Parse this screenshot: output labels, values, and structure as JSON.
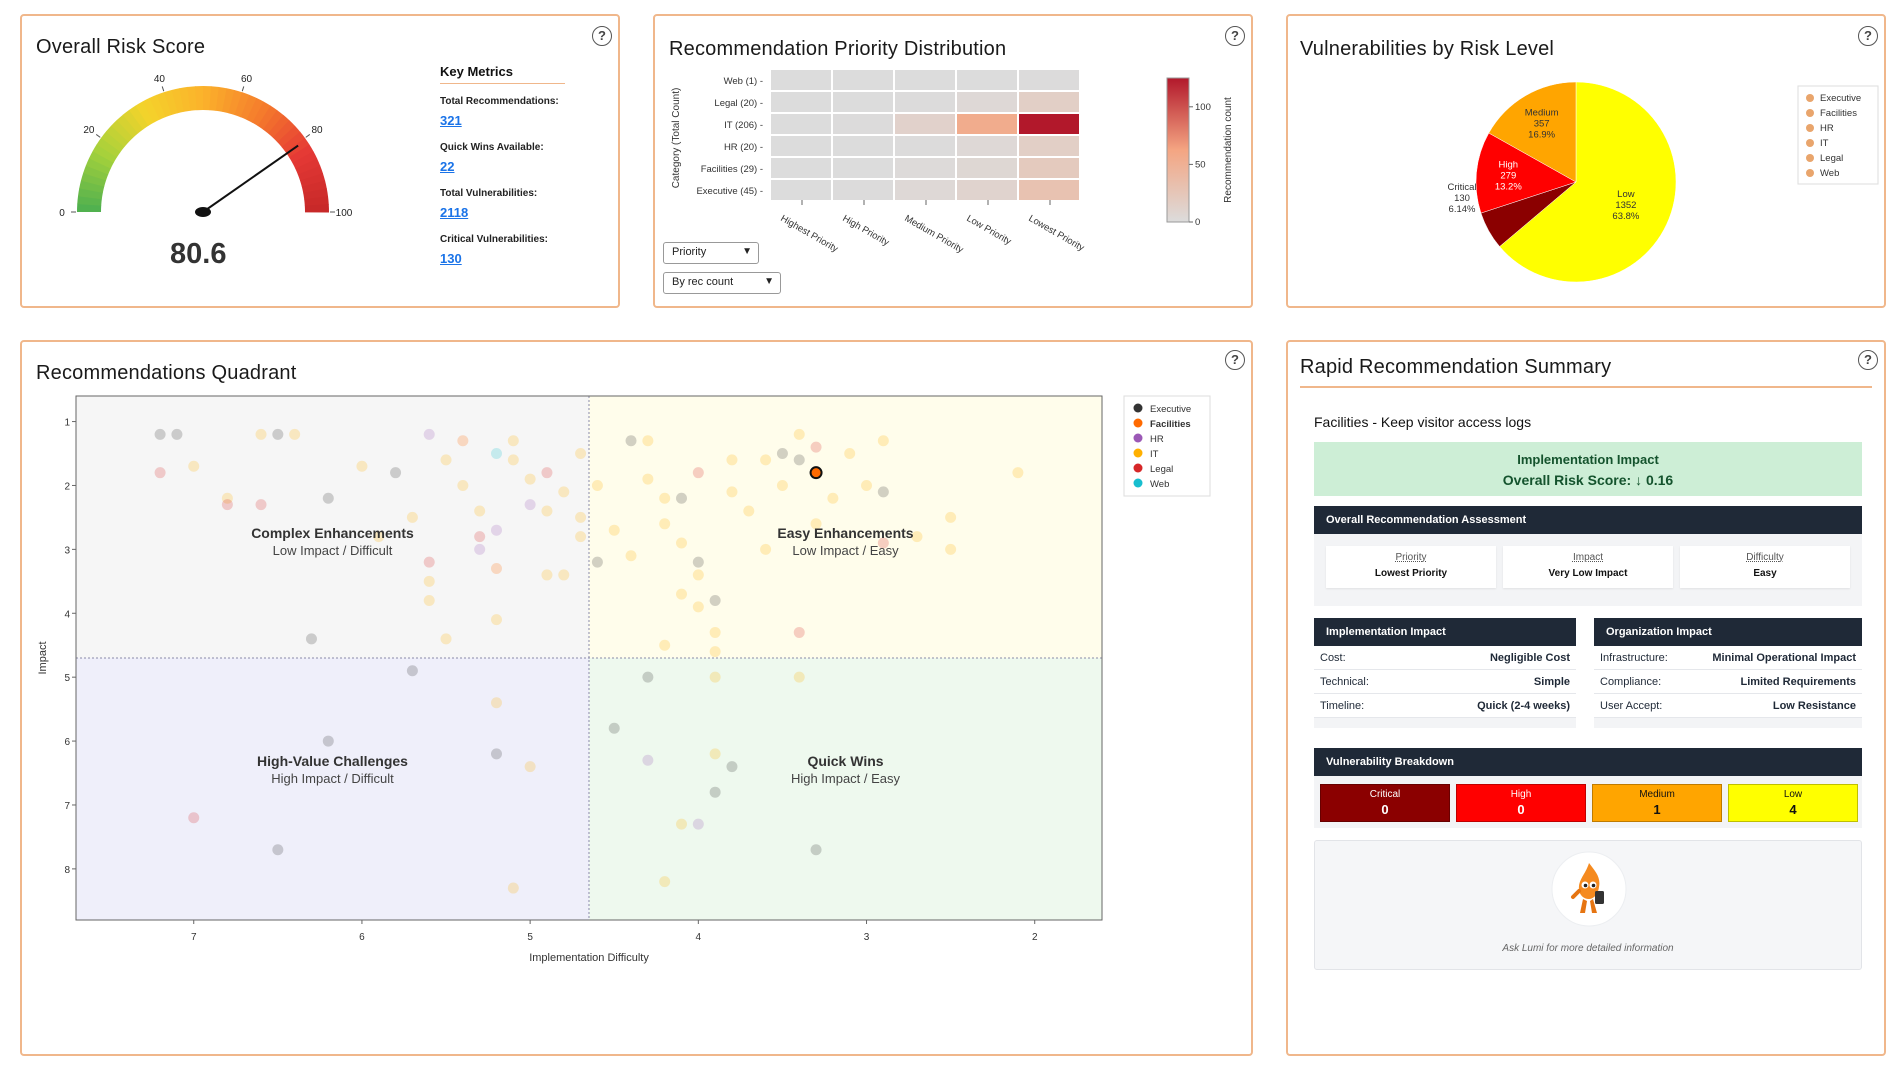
{
  "gauge": {
    "title": "Overall Risk Score",
    "score": "80.6",
    "value": 80.6,
    "ticks": [
      "0",
      "20",
      "40",
      "60",
      "80",
      "100"
    ]
  },
  "key_metrics": {
    "title": "Key Metrics",
    "items": [
      {
        "label": "Total Recommendations:",
        "value": "321"
      },
      {
        "label": "Quick Wins Available:",
        "value": "22"
      },
      {
        "label": "Total Vulnerabilities:",
        "value": "2118"
      },
      {
        "label": "Critical Vulnerabilities:",
        "value": "130"
      }
    ]
  },
  "help_label": "?",
  "heatmap": {
    "title": "Recommendation Priority Distribution",
    "ylabel": "Category (Total Count)",
    "colorbar_label": "Recommendation count",
    "colorbar_ticks": [
      "100",
      "50",
      "0"
    ],
    "rows": [
      "Web (1)",
      "Legal (20)",
      "IT (206)",
      "HR (20)",
      "Facilities (29)",
      "Executive (45)"
    ],
    "cols": [
      "Highest Priority",
      "High Priority",
      "Medium Priority",
      "Low Priority",
      "Lowest Priority"
    ],
    "select_priority": "Priority",
    "select_sort": "By rec count"
  },
  "pie": {
    "title": "Vulnerabilities by Risk Level",
    "legend": [
      "Executive",
      "Facilities",
      "HR",
      "IT",
      "Legal",
      "Web"
    ],
    "legend_color": "#e9a56c",
    "slices": [
      {
        "name": "Low",
        "count": "1352",
        "pct": "63.8%",
        "value": 1352,
        "color": "#ffff00"
      },
      {
        "name": "Critical",
        "count": "130",
        "pct": "6.14%",
        "value": 130,
        "color": "#8b0000"
      },
      {
        "name": "High",
        "count": "279",
        "pct": "13.2%",
        "value": 279,
        "color": "#ff0000"
      },
      {
        "name": "Medium",
        "count": "357",
        "pct": "16.9%",
        "value": 357,
        "color": "#ffa500"
      }
    ]
  },
  "quadrant": {
    "title": "Recommendations Quadrant",
    "xlabel": "Implementation Difficulty",
    "ylabel": "Impact",
    "xticks": [
      "7",
      "6",
      "5",
      "4",
      "3",
      "2"
    ],
    "yticks": [
      "1",
      "2",
      "3",
      "4",
      "5",
      "6",
      "7",
      "8"
    ],
    "labels": {
      "complex": {
        "title": "Complex Enhancements",
        "sub": "Low Impact / Difficult"
      },
      "easy": {
        "title": "Easy Enhancements",
        "sub": "Low Impact / Easy"
      },
      "highvalue": {
        "title": "High-Value Challenges",
        "sub": "High Impact / Difficult"
      },
      "quick": {
        "title": "Quick Wins",
        "sub": "High Impact / Easy"
      }
    },
    "legend": [
      {
        "name": "Executive",
        "color": "#333333"
      },
      {
        "name": "Facilities",
        "color": "#ff6a00"
      },
      {
        "name": "HR",
        "color": "#9b59b6"
      },
      {
        "name": "IT",
        "color": "#ffb000"
      },
      {
        "name": "Legal",
        "color": "#d62728"
      },
      {
        "name": "Web",
        "color": "#17becf"
      }
    ]
  },
  "chart_data": [
    {
      "type": "heatmap",
      "title": "Recommendation Priority Distribution",
      "x": [
        "Highest Priority",
        "High Priority",
        "Medium Priority",
        "Low Priority",
        "Lowest Priority"
      ],
      "y": [
        "Web (1)",
        "Legal (20)",
        "IT (206)",
        "HR (20)",
        "Facilities (29)",
        "Executive (45)"
      ],
      "values": [
        [
          0,
          0,
          0,
          0,
          1
        ],
        [
          0,
          0,
          1,
          4,
          15
        ],
        [
          0,
          1,
          12,
          55,
          138
        ],
        [
          0,
          0,
          1,
          4,
          15
        ],
        [
          0,
          0,
          2,
          6,
          21
        ],
        [
          0,
          1,
          4,
          10,
          30
        ]
      ],
      "zlim": [
        0,
        125
      ],
      "colorbar": "Recommendation count"
    },
    {
      "type": "pie",
      "title": "Vulnerabilities by Risk Level",
      "labels": [
        "Low",
        "Critical",
        "High",
        "Medium"
      ],
      "values": [
        1352,
        130,
        279,
        357
      ],
      "percent": [
        "63.8%",
        "6.14%",
        "13.2%",
        "16.9%"
      ]
    },
    {
      "type": "scatter",
      "title": "Recommendations Quadrant",
      "xlabel": "Implementation Difficulty",
      "ylabel": "Impact",
      "xlim": [
        7.7,
        1.6
      ],
      "ylim": [
        0.6,
        8.8
      ],
      "highlight": {
        "x": 3.3,
        "y": 1.8
      },
      "series": [
        {
          "name": "Executive",
          "color": "#333333",
          "points": [
            [
              7.2,
              1.2
            ],
            [
              7.1,
              1.2
            ],
            [
              6.5,
              1.2
            ],
            [
              6.2,
              2.2
            ],
            [
              5.8,
              1.8
            ],
            [
              6.3,
              4.4
            ],
            [
              6.2,
              6.0
            ],
            [
              6.5,
              7.7
            ],
            [
              4.6,
              3.2
            ],
            [
              3.9,
              3.8
            ],
            [
              3.8,
              6.4
            ],
            [
              3.9,
              6.8
            ],
            [
              3.3,
              7.7
            ],
            [
              4.1,
              2.2
            ],
            [
              3.4,
              1.6
            ],
            [
              2.9,
              2.1
            ],
            [
              4.3,
              5.0
            ],
            [
              4.0,
              3.2
            ],
            [
              5.7,
              4.9
            ],
            [
              5.2,
              6.2
            ],
            [
              3.5,
              1.5
            ],
            [
              4.4,
              1.3
            ],
            [
              4.5,
              5.8
            ]
          ]
        },
        {
          "name": "Facilities",
          "color": "#ff6a00",
          "points": [
            [
              5.4,
              1.3
            ],
            [
              5.2,
              3.3
            ],
            [
              3.3,
              1.8
            ]
          ]
        },
        {
          "name": "HR",
          "color": "#9b59b6",
          "points": [
            [
              5.6,
              1.2
            ],
            [
              5.0,
              2.3
            ],
            [
              5.2,
              2.7
            ],
            [
              4.3,
              6.3
            ],
            [
              4.0,
              7.3
            ],
            [
              5.3,
              3.0
            ]
          ]
        },
        {
          "name": "IT",
          "color": "#ffb000",
          "points": [
            [
              7.0,
              1.7
            ],
            [
              6.8,
              2.2
            ],
            [
              6.6,
              1.2
            ],
            [
              6.4,
              1.2
            ],
            [
              6.0,
              1.7
            ],
            [
              5.9,
              2.8
            ],
            [
              5.7,
              2.5
            ],
            [
              5.6,
              3.5
            ],
            [
              5.5,
              1.6
            ],
            [
              5.4,
              2.0
            ],
            [
              5.3,
              2.4
            ],
            [
              5.1,
              1.3
            ],
            [
              5.1,
              1.6
            ],
            [
              5.0,
              1.9
            ],
            [
              4.9,
              2.4
            ],
            [
              4.9,
              3.4
            ],
            [
              4.8,
              2.1
            ],
            [
              4.7,
              1.5
            ],
            [
              4.7,
              2.8
            ],
            [
              4.6,
              2.0
            ],
            [
              4.5,
              2.7
            ],
            [
              4.4,
              3.1
            ],
            [
              4.3,
              1.3
            ],
            [
              4.3,
              1.9
            ],
            [
              4.2,
              2.2
            ],
            [
              4.2,
              2.6
            ],
            [
              4.1,
              2.9
            ],
            [
              4.0,
              3.4
            ],
            [
              4.0,
              3.9
            ],
            [
              3.9,
              4.3
            ],
            [
              3.9,
              4.6
            ],
            [
              3.8,
              2.1
            ],
            [
              3.8,
              1.6
            ],
            [
              3.7,
              2.4
            ],
            [
              3.6,
              3.0
            ],
            [
              3.6,
              1.6
            ],
            [
              3.5,
              2.0
            ],
            [
              3.4,
              1.2
            ],
            [
              3.3,
              2.6
            ],
            [
              3.2,
              2.2
            ],
            [
              3.1,
              1.5
            ],
            [
              3.0,
              2.0
            ],
            [
              2.9,
              1.3
            ],
            [
              2.7,
              2.8
            ],
            [
              2.5,
              2.5
            ],
            [
              2.5,
              3.0
            ],
            [
              2.1,
              1.8
            ],
            [
              3.4,
              5.0
            ],
            [
              3.9,
              5.0
            ],
            [
              4.2,
              4.5
            ],
            [
              4.1,
              3.7
            ],
            [
              4.8,
              3.4
            ],
            [
              5.2,
              4.1
            ],
            [
              5.2,
              5.4
            ],
            [
              5.5,
              4.4
            ],
            [
              5.0,
              6.4
            ],
            [
              3.9,
              6.2
            ],
            [
              5.1,
              8.3
            ],
            [
              4.1,
              7.3
            ],
            [
              4.2,
              8.2
            ],
            [
              4.7,
              2.5
            ],
            [
              5.6,
              3.8
            ]
          ]
        },
        {
          "name": "Legal",
          "color": "#d62728",
          "points": [
            [
              7.2,
              1.8
            ],
            [
              6.8,
              2.3
            ],
            [
              6.6,
              2.3
            ],
            [
              5.3,
              2.8
            ],
            [
              4.9,
              1.8
            ],
            [
              3.3,
              1.4
            ],
            [
              3.4,
              4.3
            ],
            [
              7.0,
              7.2
            ],
            [
              5.6,
              3.2
            ],
            [
              4.0,
              1.8
            ],
            [
              2.9,
              2.9
            ]
          ]
        },
        {
          "name": "Web",
          "color": "#17becf",
          "points": [
            [
              5.2,
              1.5
            ]
          ]
        }
      ]
    }
  ],
  "summary": {
    "title": "Rapid Recommendation Summary",
    "subtitle": "Facilities - Keep visitor access logs",
    "impact_title": "Implementation Impact",
    "impact_value": "Overall Risk Score: ↓ 0.16",
    "assessment_title": "Overall Recommendation Assessment",
    "assessment": [
      {
        "label": "Priority",
        "value": "Lowest Priority"
      },
      {
        "label": "Impact",
        "value": "Very Low Impact"
      },
      {
        "label": "Difficulty",
        "value": "Easy"
      }
    ],
    "impl_title": "Implementation Impact",
    "impl": [
      {
        "label": "Cost:",
        "value": "Negligible Cost"
      },
      {
        "label": "Technical:",
        "value": "Simple"
      },
      {
        "label": "Timeline:",
        "value": "Quick (2-4 weeks)"
      }
    ],
    "org_title": "Organization Impact",
    "org": [
      {
        "label": "Infrastructure:",
        "value": "Minimal Operational Impact"
      },
      {
        "label": "Compliance:",
        "value": "Limited Requirements"
      },
      {
        "label": "User Accept:",
        "value": "Low Resistance"
      }
    ],
    "vuln_title": "Vulnerability Breakdown",
    "vulns": [
      {
        "label": "Critical",
        "value": "0",
        "color": "#8b0000",
        "text": "#ffffff"
      },
      {
        "label": "High",
        "value": "0",
        "color": "#ff0000",
        "text": "#ffffff"
      },
      {
        "label": "Medium",
        "value": "1",
        "color": "#ffa500",
        "text": "#111111"
      },
      {
        "label": "Low",
        "value": "4",
        "color": "#ffff00",
        "text": "#111111"
      }
    ],
    "lumi_caption": "Ask Lumi for more detailed information"
  }
}
